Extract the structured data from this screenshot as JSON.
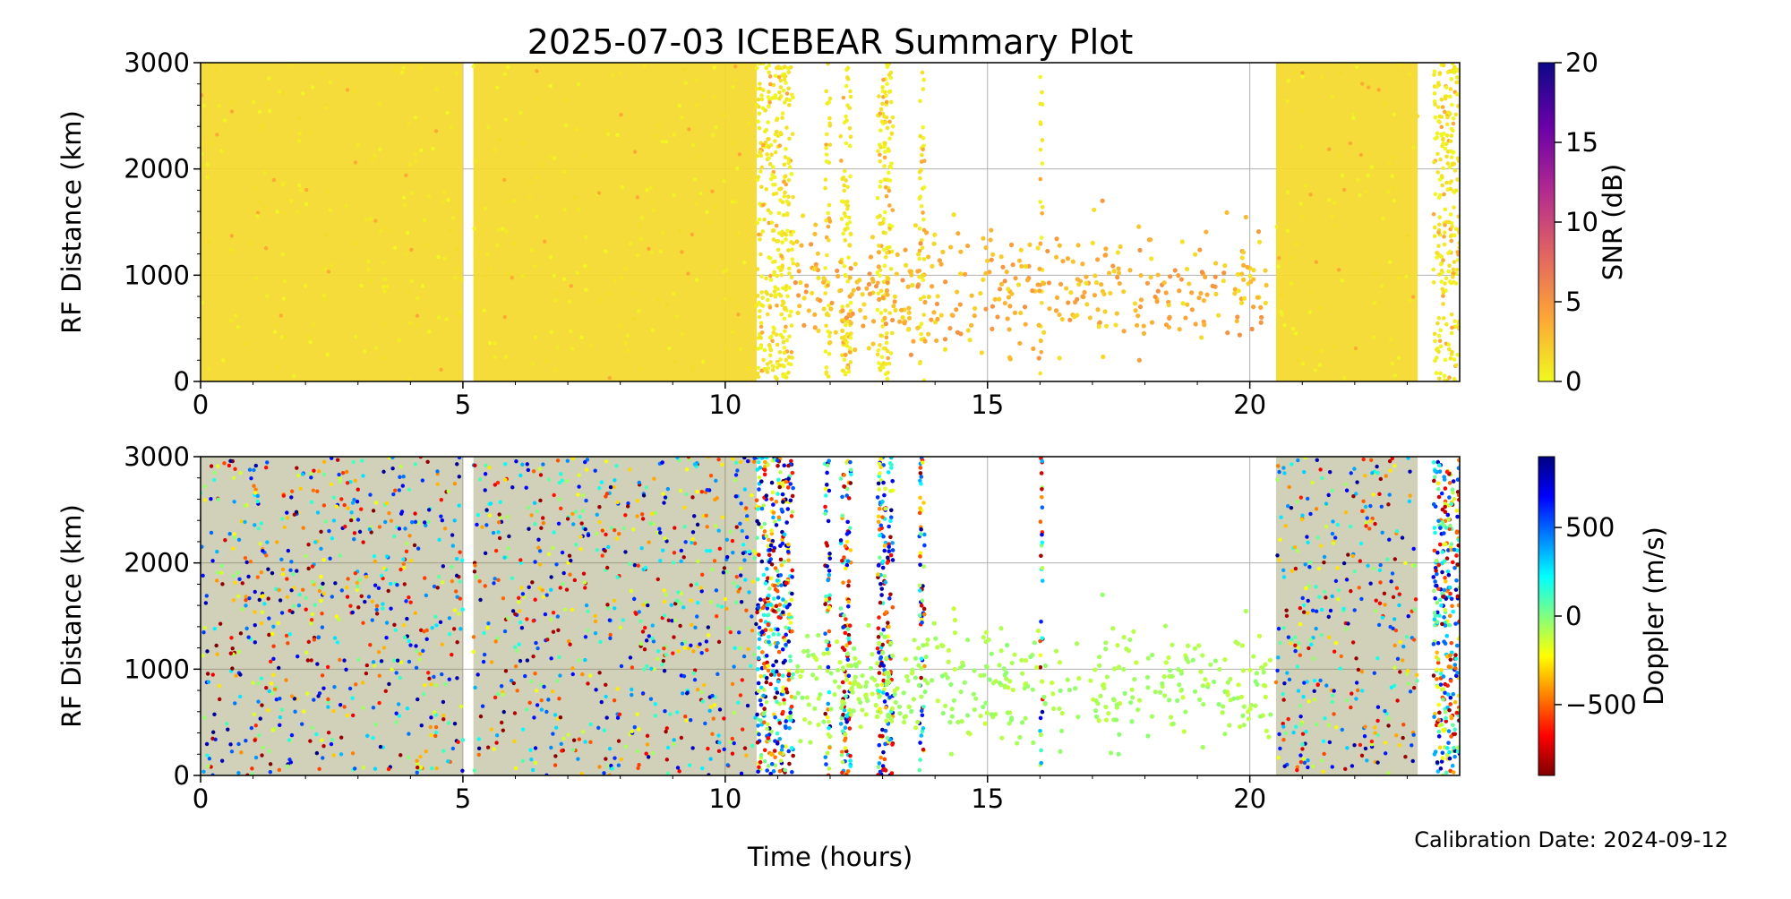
{
  "figure": {
    "title": "2025-07-03 ICEBEAR Summary Plot",
    "xlabel": "Time (hours)",
    "footer": "Calibration Date: 2024-09-12"
  },
  "chart_data": [
    {
      "type": "scatter",
      "panel": "top",
      "ylabel": "RF Distance (km)",
      "xlabel": "Time (hours)",
      "xlim": [
        0,
        24
      ],
      "ylim": [
        0,
        3000
      ],
      "xticks": [
        0,
        5,
        10,
        15,
        20
      ],
      "yticks": [
        0,
        1000,
        2000,
        3000
      ],
      "grid": true,
      "color_by": "SNR",
      "colorbar": {
        "label": "SNR (dB)",
        "range": [
          0,
          20
        ],
        "ticks": [
          0,
          5,
          10,
          15,
          20
        ],
        "colormap": "plasma_r",
        "stops": [
          "#f0f921",
          "#fca636",
          "#e16462",
          "#b12a90",
          "#6a00a8",
          "#0d0887"
        ]
      },
      "dense_bands": [
        [
          0,
          5.0
        ],
        [
          5.2,
          10.6
        ],
        [
          20.5,
          23.2
        ]
      ],
      "narrow_strips": [
        [
          10.6,
          11.3
        ],
        [
          11.9,
          12.0
        ],
        [
          12.2,
          12.4
        ],
        [
          12.9,
          13.2
        ],
        [
          13.7,
          13.8
        ],
        [
          16.0,
          16.05
        ],
        [
          23.5,
          24.0
        ]
      ],
      "sparse_region": {
        "x": [
          11.3,
          20.4
        ],
        "y": [
          200,
          1700
        ],
        "cluster_center": 800
      },
      "dominant_value": "0-2 dB"
    },
    {
      "type": "scatter",
      "panel": "bottom",
      "ylabel": "RF Distance (km)",
      "xlabel": "Time (hours)",
      "xlim": [
        0,
        24
      ],
      "ylim": [
        0,
        3000
      ],
      "xticks": [
        0,
        5,
        10,
        15,
        20
      ],
      "yticks": [
        0,
        1000,
        2000,
        3000
      ],
      "grid": true,
      "color_by": "Doppler",
      "colorbar": {
        "label": "Doppler (m/s)",
        "range": [
          -900,
          900
        ],
        "ticks": [
          -500,
          0,
          500
        ],
        "tick_labels": [
          "−500",
          "0",
          "500"
        ],
        "colormap": "jet_r",
        "stops": [
          "#7f0000",
          "#ff0000",
          "#ff8000",
          "#ffff00",
          "#80ff80",
          "#00ffff",
          "#0080ff",
          "#0000ff",
          "#00007f"
        ]
      },
      "dense_bands": [
        [
          0,
          5.0
        ],
        [
          5.2,
          10.6
        ],
        [
          20.5,
          23.2
        ]
      ],
      "narrow_strips": [
        [
          10.6,
          11.3
        ],
        [
          11.9,
          12.0
        ],
        [
          12.2,
          12.4
        ],
        [
          12.9,
          13.2
        ],
        [
          13.7,
          13.8
        ],
        [
          16.0,
          16.05
        ],
        [
          23.5,
          24.0
        ]
      ],
      "sparse_region": {
        "x": [
          11.3,
          20.4
        ],
        "y": [
          200,
          1700
        ],
        "cluster_center": 800,
        "doppler_approx": 0
      }
    }
  ]
}
